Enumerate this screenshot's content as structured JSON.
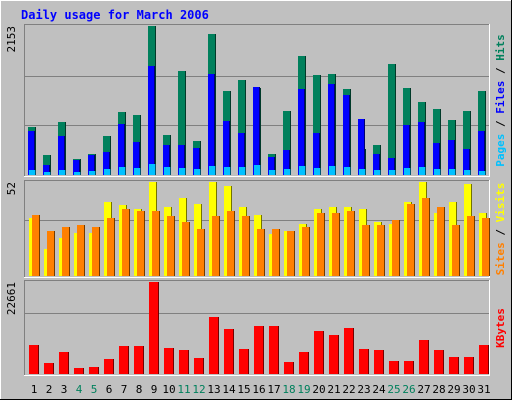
{
  "chart_data": [
    {
      "type": "bar",
      "title": "Daily usage for March 2006",
      "categories": [
        "1",
        "2",
        "3",
        "4",
        "5",
        "6",
        "7",
        "8",
        "9",
        "10",
        "11",
        "12",
        "13",
        "14",
        "15",
        "16",
        "17",
        "18",
        "19",
        "20",
        "21",
        "22",
        "23",
        "24",
        "25",
        "26",
        "27",
        "28",
        "29",
        "30",
        "31"
      ],
      "weekend_days": [
        "4",
        "5",
        "11",
        "12",
        "18",
        "19",
        "25",
        "26"
      ],
      "ymax_label": "2153",
      "ylim": [
        0,
        2153
      ],
      "ylabel_parts": [
        "Pages",
        " / ",
        "Files",
        " / ",
        "Hits"
      ],
      "series": [
        {
          "name": "Hits",
          "color": "#00805c",
          "values": [
            690,
            290,
            760,
            235,
            300,
            560,
            910,
            870,
            2153,
            580,
            1500,
            490,
            2040,
            1210,
            1370,
            1250,
            310,
            930,
            1720,
            1440,
            1460,
            1240,
            370,
            440,
            1610,
            1250,
            1050,
            950,
            790,
            920,
            1210
          ]
        },
        {
          "name": "Files",
          "color": "#0000ff",
          "values": [
            640,
            150,
            560,
            215,
            290,
            330,
            730,
            480,
            1580,
            430,
            440,
            390,
            1460,
            780,
            610,
            1270,
            260,
            360,
            1240,
            610,
            1310,
            1150,
            810,
            300,
            240,
            720,
            770,
            460,
            510,
            370,
            640
          ]
        },
        {
          "name": "Pages",
          "color": "#00c0ff",
          "values": [
            75,
            45,
            70,
            50,
            55,
            80,
            110,
            95,
            160,
            110,
            95,
            85,
            130,
            115,
            120,
            140,
            70,
            90,
            135,
            105,
            125,
            110,
            90,
            75,
            75,
            100,
            115,
            85,
            85,
            75,
            65
          ]
        }
      ]
    },
    {
      "type": "bar",
      "categories": [
        "1",
        "2",
        "3",
        "4",
        "5",
        "6",
        "7",
        "8",
        "9",
        "10",
        "11",
        "12",
        "13",
        "14",
        "15",
        "16",
        "17",
        "18",
        "19",
        "20",
        "21",
        "22",
        "23",
        "24",
        "25",
        "26",
        "27",
        "28",
        "29",
        "30",
        "31"
      ],
      "ymax_label": "52",
      "ylim": [
        0,
        52
      ],
      "ylabel_parts": [
        "Sites",
        " / ",
        "Visits"
      ],
      "series": [
        {
          "name": "Visits",
          "color": "#ffff00",
          "values": [
            32,
            15,
            21,
            24,
            24,
            41,
            39,
            37,
            52,
            38,
            43,
            40,
            52,
            50,
            38,
            34,
            23,
            25,
            29,
            37,
            38,
            38,
            37,
            30,
            29,
            41,
            52,
            35,
            41,
            51,
            35
          ]
        },
        {
          "name": "Sites",
          "color": "#ff8000",
          "values": [
            34,
            25,
            27,
            28,
            27,
            32,
            37,
            36,
            36,
            33,
            30,
            26,
            33,
            36,
            33,
            26,
            26,
            25,
            27,
            35,
            35,
            36,
            28,
            28,
            31,
            40,
            43,
            38,
            28,
            33,
            32
          ]
        }
      ]
    },
    {
      "type": "bar",
      "categories": [
        "1",
        "2",
        "3",
        "4",
        "5",
        "6",
        "7",
        "8",
        "9",
        "10",
        "11",
        "12",
        "13",
        "14",
        "15",
        "16",
        "17",
        "18",
        "19",
        "20",
        "21",
        "22",
        "23",
        "24",
        "25",
        "26",
        "27",
        "28",
        "29",
        "30",
        "31"
      ],
      "ymax_label": "22661",
      "ylim": [
        0,
        22661
      ],
      "ylabel_parts": [
        "KBytes"
      ],
      "series": [
        {
          "name": "KBytes",
          "color": "#ff0000",
          "values": [
            7100,
            2600,
            5300,
            1500,
            1800,
            3600,
            7000,
            7000,
            22661,
            6300,
            6000,
            3900,
            14000,
            11000,
            6200,
            11700,
            11900,
            3000,
            5500,
            10600,
            9500,
            11300,
            6200,
            5900,
            3100,
            3100,
            8400,
            6000,
            4200,
            4200,
            7200
          ]
        }
      ]
    }
  ]
}
